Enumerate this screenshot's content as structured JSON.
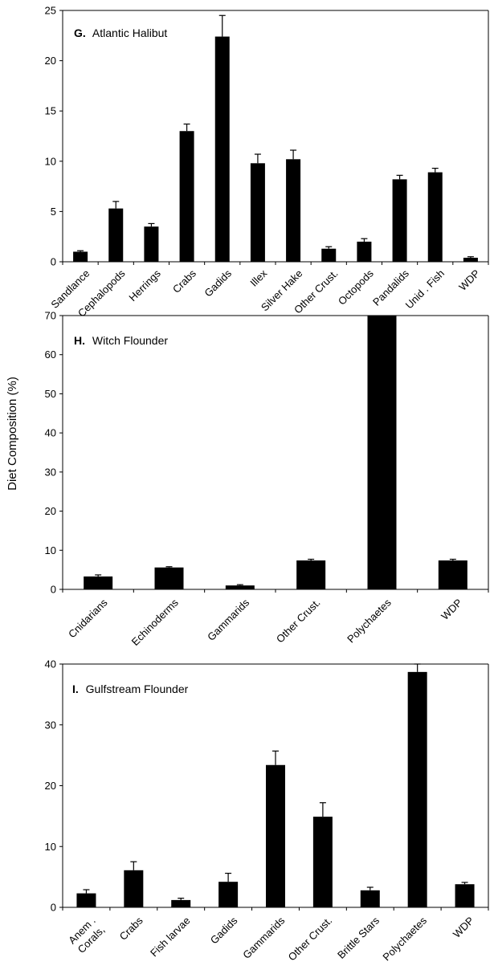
{
  "shared_ylabel": "Diet Composition (%)",
  "chart_data": [
    {
      "type": "bar",
      "panel_letter": "G.",
      "title": "Atlantic Halibut",
      "ylim": [
        0,
        25
      ],
      "yticks": [
        0,
        5,
        10,
        15,
        20,
        25
      ],
      "categories": [
        "Sandlance",
        "Cephalopods",
        "Herrings",
        "Crabs",
        "Gadids",
        "Illex",
        "Silver Hake",
        "Other Crust.",
        "Octopods",
        "Pandalids",
        "Unid . Fish",
        "WDP"
      ],
      "values": [
        1.0,
        5.3,
        3.5,
        13.0,
        22.4,
        9.8,
        10.2,
        1.3,
        2.0,
        8.2,
        8.9,
        0.4
      ],
      "errors": [
        0.1,
        0.7,
        0.3,
        0.7,
        2.1,
        0.9,
        0.9,
        0.2,
        0.3,
        0.4,
        0.4,
        0.1
      ],
      "grid": false,
      "bar_color": "#000000"
    },
    {
      "type": "bar",
      "panel_letter": "H.",
      "title": "Witch Flounder",
      "ylim": [
        0,
        70
      ],
      "yticks": [
        0,
        10,
        20,
        30,
        40,
        50,
        60,
        70
      ],
      "categories": [
        "Cnidarians",
        "Echinoderms",
        "Gammarids",
        "Other Crust.",
        "Polychaetes",
        "WDP"
      ],
      "values": [
        3.3,
        5.6,
        1.0,
        7.4,
        72.0,
        7.4
      ],
      "errors": [
        0.4,
        0.2,
        0.2,
        0.3,
        0.0,
        0.3
      ],
      "grid": false,
      "bar_color": "#000000"
    },
    {
      "type": "bar",
      "panel_letter": "I.",
      "title": "Gulfstream Flounder",
      "ylim": [
        0,
        40
      ],
      "yticks": [
        0,
        10,
        20,
        30,
        40
      ],
      "categories": [
        "Anem .\nCorals,",
        "Crabs",
        "Fish larvae",
        "Gadids",
        "Gammarids",
        "Other Crust.",
        "Brittle Stars",
        "Polychaetes",
        "WDP"
      ],
      "values": [
        2.3,
        6.1,
        1.2,
        4.2,
        23.4,
        14.9,
        2.8,
        38.7,
        3.8
      ],
      "errors": [
        0.6,
        1.4,
        0.3,
        1.4,
        2.3,
        2.3,
        0.5,
        2.0,
        0.3
      ],
      "grid": false,
      "bar_color": "#000000"
    }
  ]
}
